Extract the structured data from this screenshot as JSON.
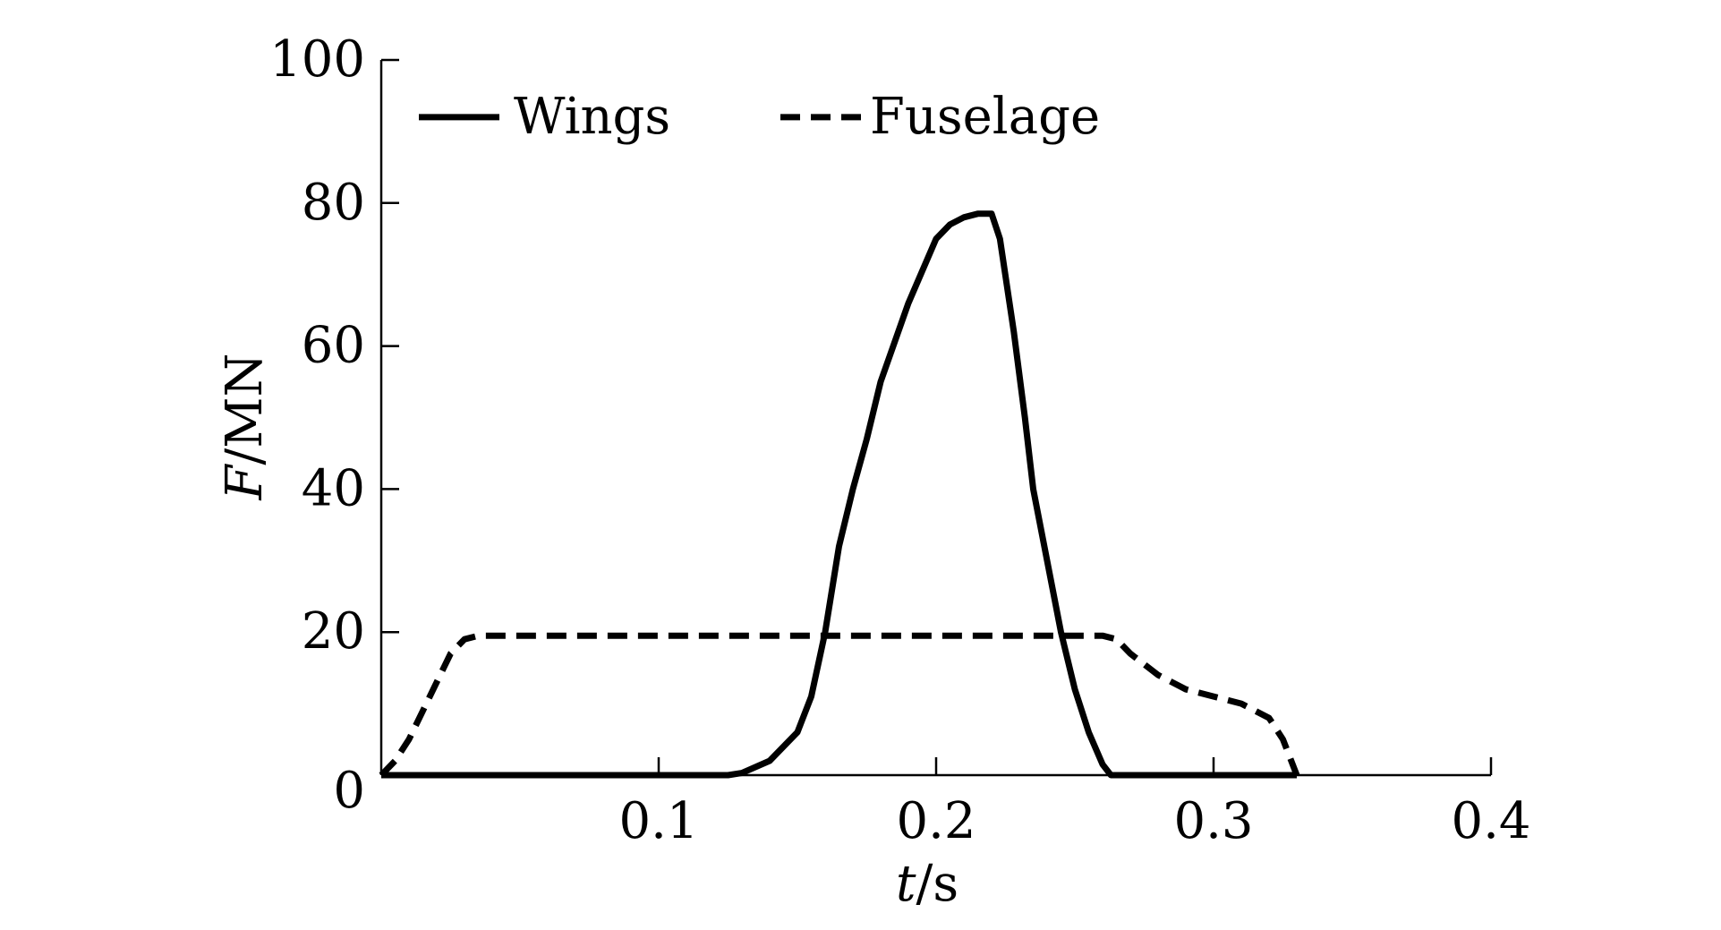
{
  "chart_data": {
    "type": "line",
    "xlabel_italic": "t",
    "xlabel_rest": "/s",
    "ylabel_italic": "F",
    "ylabel_rest": "/MN",
    "xlim": [
      0,
      0.4
    ],
    "ylim": [
      0,
      100
    ],
    "x_ticks": [
      0.1,
      0.2,
      0.3,
      0.4
    ],
    "x_tick_labels": [
      "0.1",
      "0.2",
      "0.3",
      "0.4"
    ],
    "y_ticks": [
      0,
      20,
      40,
      60,
      80,
      100
    ],
    "y_tick_labels": [
      "0",
      "20",
      "40",
      "60",
      "80",
      "100"
    ],
    "grid": false,
    "legend_position": "top-left, horizontal",
    "series": [
      {
        "name": "Wings",
        "style": "solid",
        "x": [
          0,
          0.125,
          0.13,
          0.14,
          0.15,
          0.155,
          0.16,
          0.165,
          0.17,
          0.175,
          0.18,
          0.19,
          0.2,
          0.205,
          0.21,
          0.215,
          0.22,
          0.223,
          0.228,
          0.232,
          0.235,
          0.24,
          0.245,
          0.25,
          0.255,
          0.26,
          0.263,
          0.27,
          0.33
        ],
        "values": [
          0,
          0,
          0.3,
          2,
          6,
          11,
          20,
          32,
          40,
          47,
          55,
          66,
          75,
          77,
          78,
          78.5,
          78.5,
          75,
          62,
          50,
          40,
          30,
          20,
          12,
          6,
          1.5,
          0,
          0,
          0
        ]
      },
      {
        "name": "Fuselage",
        "style": "dashed",
        "x": [
          0,
          0.005,
          0.01,
          0.015,
          0.02,
          0.025,
          0.03,
          0.035,
          0.26,
          0.265,
          0.27,
          0.28,
          0.29,
          0.3,
          0.31,
          0.32,
          0.325,
          0.328,
          0.33
        ],
        "values": [
          0,
          2,
          5,
          9,
          13,
          17,
          19,
          19.5,
          19.5,
          19,
          17,
          14,
          12,
          11,
          10,
          8,
          5,
          2,
          0
        ]
      }
    ]
  }
}
